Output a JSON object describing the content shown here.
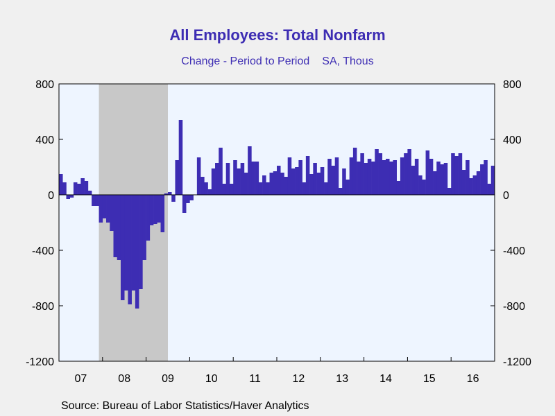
{
  "title": "All Employees: Total Nonfarm",
  "subtitle_left": "Change - Period to Period",
  "subtitle_right": "SA, Thous",
  "source": "Source:  Bureau of Labor Statistics/Haver Analytics",
  "colors": {
    "bar": "#3d2db3",
    "plot_bg": "#eef5ff",
    "recession": "#c8c8c8",
    "page_bg": "#f0f0f0",
    "text_accent": "#3d2db3"
  },
  "chart_data": {
    "type": "bar",
    "title": "All Employees: Total Nonfarm",
    "subtitle": "Change - Period to Period    SA, Thous",
    "x_start": "2007-01",
    "frequency": "monthly",
    "ylim": [
      -1200,
      800
    ],
    "yticks": [
      800,
      400,
      0,
      -400,
      -800,
      -1200
    ],
    "xticks": [
      "07",
      "08",
      "09",
      "10",
      "11",
      "12",
      "13",
      "14",
      "15",
      "16"
    ],
    "recession": {
      "start": "2007-12",
      "end": "2009-06"
    },
    "grid": false,
    "values": [
      150,
      90,
      -30,
      -20,
      90,
      80,
      120,
      100,
      30,
      -80,
      -80,
      -200,
      -170,
      -200,
      -260,
      -450,
      -470,
      -760,
      -690,
      -790,
      -690,
      -820,
      -680,
      -470,
      -330,
      -220,
      -210,
      -200,
      -270,
      10,
      20,
      -50,
      250,
      540,
      -130,
      -60,
      -40,
      0,
      270,
      130,
      90,
      40,
      190,
      230,
      340,
      80,
      230,
      80,
      250,
      190,
      230,
      160,
      350,
      240,
      240,
      90,
      140,
      90,
      160,
      170,
      210,
      160,
      130,
      270,
      190,
      200,
      250,
      90,
      280,
      150,
      230,
      160,
      200,
      90,
      260,
      210,
      270,
      50,
      190,
      110,
      270,
      340,
      240,
      300,
      230,
      260,
      240,
      330,
      300,
      250,
      260,
      240,
      250,
      100,
      270,
      300,
      330,
      210,
      260,
      140,
      110,
      320,
      260,
      170,
      240,
      220,
      230,
      50,
      300,
      280,
      300,
      180,
      250,
      120,
      140,
      170,
      220,
      250,
      80,
      210
    ]
  }
}
